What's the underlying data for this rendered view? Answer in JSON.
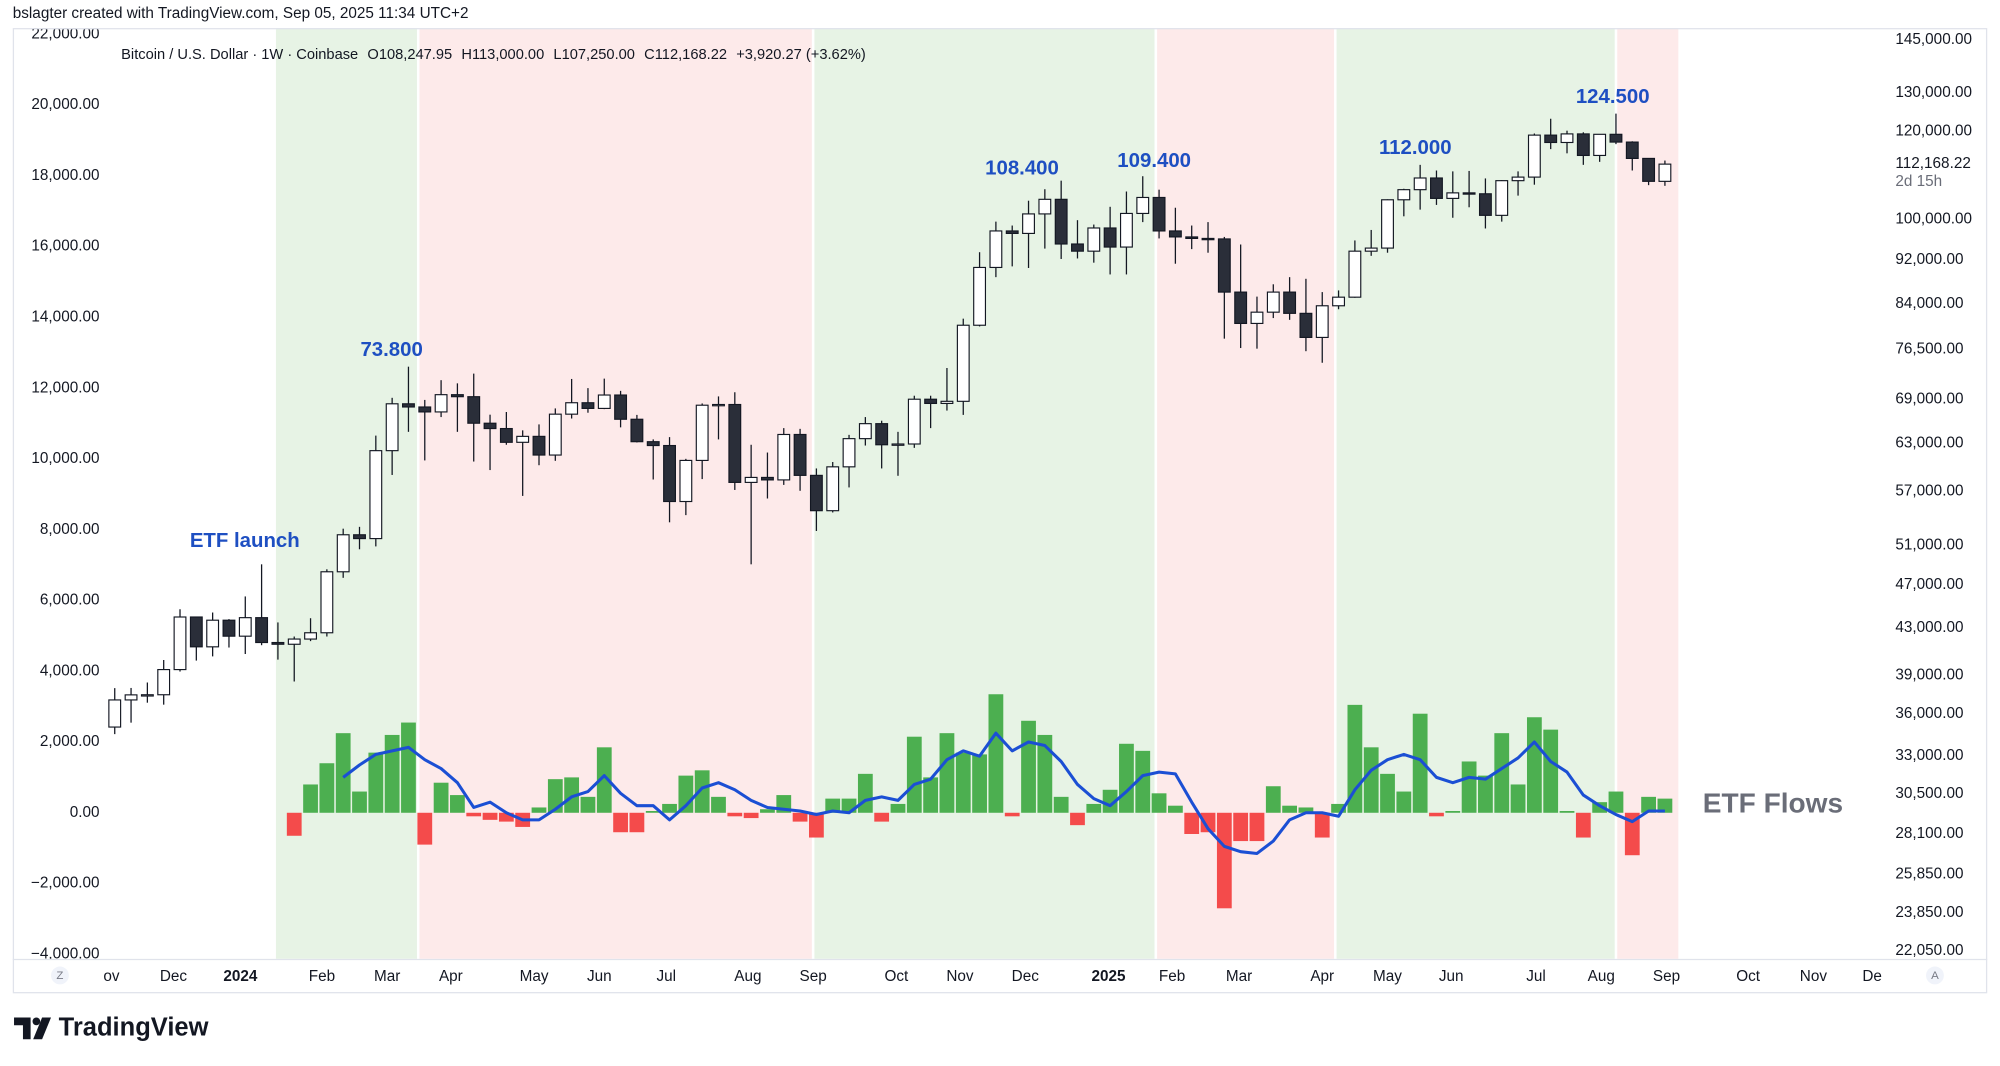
{
  "credit": "bslagter created with TradingView.com, Sep 05, 2025 11:34 UTC+2",
  "brand": "TradingView",
  "controls": {
    "left": "Z",
    "right": "A"
  },
  "chart_data": {
    "type": "candlestick",
    "header": {
      "symbol": "Bitcoin / U.S. Dollar · 1W · Coinbase",
      "ohlc": [
        {
          "key": "O",
          "value": "108,247.95"
        },
        {
          "key": "H",
          "value": "113,000.00"
        },
        {
          "key": "L",
          "value": "107,250.00"
        },
        {
          "key": "C",
          "value": "112,168.22"
        }
      ],
      "change": "+3,920.27 (+3.62%)"
    },
    "x": [
      0,
      1,
      2,
      3,
      4,
      5,
      6,
      7,
      8,
      9,
      10,
      11,
      12,
      13,
      14,
      15,
      16,
      17,
      18,
      19,
      20,
      21,
      22,
      23,
      24,
      25,
      26,
      27,
      28,
      29,
      30,
      31,
      32,
      33,
      34,
      35,
      36,
      37,
      38,
      39,
      40,
      41,
      42,
      43,
      44,
      45,
      46,
      47,
      48,
      49,
      50,
      51,
      52,
      53,
      54,
      55,
      56,
      57,
      58,
      59,
      60,
      61,
      62,
      63,
      64,
      65,
      66,
      67,
      68,
      69,
      70,
      71,
      72,
      73,
      74,
      75,
      76,
      77,
      78,
      79,
      80,
      81,
      82,
      83,
      84,
      85,
      86,
      87,
      88,
      89,
      90,
      91,
      92,
      93,
      94,
      95
    ],
    "open": [
      35040,
      37060,
      37450,
      37460,
      39460,
      43990,
      41360,
      43700,
      42280,
      43930,
      41730,
      41580,
      42030,
      42580,
      48300,
      52140,
      51730,
      62040,
      68350,
      67900,
      67210,
      69650,
      69360,
      65660,
      64940,
      63120,
      63900,
      61480,
      66900,
      68500,
      67700,
      69600,
      66200,
      63200,
      62700,
      55850,
      60800,
      68150,
      68250,
      58100,
      58700,
      58400,
      64150,
      58950,
      54800,
      60000,
      63600,
      65600,
      62800,
      62900,
      69000,
      68400,
      68700,
      80400,
      90600,
      97700,
      97200,
      101200,
      104300,
      95100,
      93700,
      98300,
      94500,
      101300,
      104700,
      97700,
      96500,
      96200,
      96100,
      86100,
      80700,
      82600,
      86100,
      82400,
      78400,
      83700,
      85200,
      93700,
      94300,
      104200,
      106400,
      109000,
      104500,
      105700,
      105500,
      100900,
      108400,
      109200,
      119100,
      117300,
      119400,
      114200,
      119300,
      117400,
      113500,
      108247.95
    ],
    "high": [
      37980,
      37990,
      38420,
      40250,
      44700,
      44000,
      44400,
      43800,
      45900,
      49050,
      43500,
      42250,
      43880,
      48550,
      52800,
      53000,
      64000,
      69200,
      73800,
      68900,
      71770,
      71300,
      72750,
      66830,
      67200,
      64700,
      65500,
      67700,
      71950,
      70600,
      72000,
      70200,
      66800,
      63500,
      63800,
      61000,
      68400,
      69400,
      70000,
      62800,
      61800,
      65000,
      64900,
      59800,
      60600,
      64100,
      66500,
      66000,
      64500,
      69500,
      69500,
      73600,
      81500,
      93500,
      99600,
      98800,
      104000,
      106500,
      108400,
      99900,
      99000,
      102700,
      106000,
      109400,
      106400,
      102500,
      98800,
      99500,
      96500,
      95000,
      85300,
      87500,
      88800,
      88500,
      86100,
      86400,
      95800,
      97900,
      104300,
      106600,
      112000,
      110700,
      110500,
      110600,
      108900,
      108500,
      110500,
      119500,
      123200,
      120200,
      119800,
      119300,
      124500,
      117600,
      113600,
      113000
    ],
    "low": [
      34530,
      35360,
      36850,
      36700,
      39300,
      40200,
      40550,
      41300,
      40750,
      41500,
      40280,
      38500,
      41850,
      42250,
      47700,
      50600,
      50900,
      59000,
      64500,
      60800,
      66500,
      64500,
      60660,
      59600,
      62800,
      56500,
      60200,
      60750,
      66300,
      67100,
      67600,
      65100,
      63100,
      58450,
      53500,
      54300,
      58500,
      63500,
      57200,
      49050,
      56200,
      57800,
      57100,
      52550,
      54600,
      57500,
      62700,
      59800,
      58900,
      62400,
      65000,
      67400,
      66800,
      80200,
      88800,
      90800,
      90500,
      94200,
      92200,
      92300,
      91500,
      89300,
      89300,
      99500,
      96200,
      91300,
      94100,
      93400,
      78200,
      76700,
      76600,
      81600,
      81300,
      76200,
      74400,
      83100,
      85100,
      92800,
      93400,
      100700,
      102100,
      103100,
      100400,
      102600,
      98200,
      99600,
      105100,
      107500,
      115700,
      114700,
      112000,
      112700,
      116900,
      110700,
      107400,
      107250
    ],
    "close": [
      37060,
      37450,
      37460,
      39460,
      43990,
      41360,
      43700,
      42280,
      43930,
      41730,
      41580,
      42030,
      42580,
      48300,
      52140,
      51730,
      62040,
      68350,
      67900,
      67210,
      69650,
      69360,
      65660,
      64940,
      63120,
      63900,
      61480,
      66900,
      68500,
      67700,
      69600,
      66200,
      63200,
      62700,
      55850,
      60800,
      68150,
      68250,
      58100,
      58700,
      58400,
      64150,
      58950,
      54800,
      60000,
      63600,
      65600,
      62800,
      62900,
      69000,
      68400,
      68700,
      80400,
      90600,
      97700,
      97200,
      101200,
      104300,
      95100,
      93700,
      98300,
      94500,
      101300,
      104700,
      97700,
      96500,
      96200,
      96100,
      86100,
      80700,
      82600,
      86100,
      82400,
      78400,
      83700,
      85200,
      93700,
      94300,
      104200,
      106400,
      109000,
      104500,
      105700,
      105500,
      100900,
      108400,
      109200,
      119100,
      117300,
      119400,
      114200,
      119300,
      117400,
      113500,
      108250,
      112168.22
    ],
    "up_color": "#ffffff",
    "down_color": "#2a2e39",
    "wick_color": "#131722",
    "series": [
      {
        "name": "ETF Flows",
        "type": "bar",
        "axis": "y",
        "color": "#4caf50",
        "negative_color": "#f44b4b",
        "values": [
          null,
          null,
          null,
          null,
          null,
          null,
          null,
          null,
          null,
          null,
          null,
          -650,
          800,
          1400,
          2250,
          600,
          1700,
          2200,
          2550,
          -900,
          850,
          500,
          -100,
          -200,
          -250,
          -400,
          150,
          950,
          1000,
          450,
          1850,
          -550,
          -550,
          50,
          250,
          1050,
          1200,
          450,
          -100,
          -150,
          100,
          500,
          -250,
          -700,
          400,
          400,
          1100,
          -250,
          250,
          2150,
          1000,
          2250,
          1700,
          1650,
          3350,
          -100,
          2600,
          2200,
          450,
          -350,
          250,
          650,
          1950,
          1750,
          550,
          200,
          -600,
          -550,
          -2700,
          -800,
          -800,
          750,
          200,
          150,
          -700,
          250,
          3050,
          1850,
          1100,
          600,
          2800,
          -100,
          50,
          1450,
          1050,
          2250,
          800,
          2700,
          2350,
          50,
          -700,
          300,
          600,
          -1200,
          450,
          400
        ]
      },
      {
        "type": "line",
        "axis": "y",
        "color": "#1b4fd4",
        "values": [
          null,
          null,
          null,
          null,
          null,
          null,
          null,
          null,
          null,
          null,
          null,
          null,
          null,
          null,
          1000,
          1350,
          1650,
          1750,
          1850,
          1500,
          1250,
          850,
          150,
          300,
          0,
          -200,
          -200,
          100,
          450,
          600,
          1050,
          550,
          200,
          200,
          -200,
          200,
          700,
          850,
          650,
          350,
          150,
          100,
          50,
          -50,
          50,
          0,
          350,
          450,
          350,
          800,
          950,
          1500,
          1750,
          1600,
          2250,
          1750,
          2000,
          1900,
          1450,
          800,
          400,
          200,
          600,
          1050,
          1150,
          1100,
          300,
          -450,
          -950,
          -1100,
          -1150,
          -800,
          -200,
          0,
          0,
          -100,
          650,
          1200,
          1500,
          1650,
          1500,
          1000,
          850,
          1000,
          950,
          1250,
          1550,
          2000,
          1450,
          1150,
          500,
          200,
          -50,
          -250,
          50,
          50
        ]
      }
    ],
    "xlim": [
      -6.25,
      108.5
    ],
    "xticks": [
      {
        "value": -0.2,
        "label": "ov"
      },
      {
        "value": 3.6,
        "label": "Dec"
      },
      {
        "value": 7.7,
        "label": "2024",
        "bold": true
      },
      {
        "value": 12.7,
        "label": "Feb"
      },
      {
        "value": 16.7,
        "label": "Mar"
      },
      {
        "value": 20.6,
        "label": "Apr"
      },
      {
        "value": 25.7,
        "label": "May"
      },
      {
        "value": 29.7,
        "label": "Jun"
      },
      {
        "value": 33.8,
        "label": "Jul"
      },
      {
        "value": 38.8,
        "label": "Aug"
      },
      {
        "value": 42.8,
        "label": "Sep"
      },
      {
        "value": 47.9,
        "label": "Oct"
      },
      {
        "value": 51.8,
        "label": "Nov"
      },
      {
        "value": 55.8,
        "label": "Dec"
      },
      {
        "value": 60.9,
        "label": "2025",
        "bold": true
      },
      {
        "value": 64.8,
        "label": "Feb"
      },
      {
        "value": 68.9,
        "label": "Mar"
      },
      {
        "value": 74.0,
        "label": "Apr"
      },
      {
        "value": 78.0,
        "label": "May"
      },
      {
        "value": 81.9,
        "label": "Jun"
      },
      {
        "value": 87.1,
        "label": "Jul"
      },
      {
        "value": 91.1,
        "label": "Aug"
      },
      {
        "value": 95.1,
        "label": "Sep"
      },
      {
        "value": 100.1,
        "label": "Oct"
      },
      {
        "value": 104.1,
        "label": "Nov"
      },
      {
        "value": 107.7,
        "label": "De"
      }
    ],
    "ylim": [
      -4130,
      22180
    ],
    "yticks": [
      {
        "value": -4000,
        "label": "−4,000.00"
      },
      {
        "value": -2000,
        "label": "−2,000.00"
      },
      {
        "value": 0,
        "label": "0.00"
      },
      {
        "value": 2000,
        "label": "2,000.00"
      },
      {
        "value": 4000,
        "label": "4,000.00"
      },
      {
        "value": 6000,
        "label": "6,000.00"
      },
      {
        "value": 8000,
        "label": "8,000.00"
      },
      {
        "value": 10000,
        "label": "10,000.00"
      },
      {
        "value": 12000,
        "label": "12,000.00"
      },
      {
        "value": 14000,
        "label": "14,000.00"
      },
      {
        "value": 16000,
        "label": "16,000.00"
      },
      {
        "value": 18000,
        "label": "18,000.00"
      },
      {
        "value": 20000,
        "label": "20,000.00"
      },
      {
        "value": 22000,
        "label": "22,000.00"
      }
    ],
    "y2lim": [
      21700,
      148600
    ],
    "y2scale": "log",
    "y2ticks": [
      {
        "value": 145000,
        "label": "145,000.00"
      },
      {
        "value": 130000,
        "label": "130,000.00"
      },
      {
        "value": 120000,
        "label": "120,000.00"
      },
      {
        "value": 100000,
        "label": "100,000.00"
      },
      {
        "value": 92000,
        "label": "92,000.00"
      },
      {
        "value": 84000,
        "label": "84,000.00"
      },
      {
        "value": 76500,
        "label": "76,500.00"
      },
      {
        "value": 69000,
        "label": "69,000.00"
      },
      {
        "value": 63000,
        "label": "63,000.00"
      },
      {
        "value": 57000,
        "label": "57,000.00"
      },
      {
        "value": 51000,
        "label": "51,000.00"
      },
      {
        "value": 47000,
        "label": "47,000.00"
      },
      {
        "value": 43000,
        "label": "43,000.00"
      },
      {
        "value": 39000,
        "label": "39,000.00"
      },
      {
        "value": 36000,
        "label": "36,000.00"
      },
      {
        "value": 33000,
        "label": "33,000.00"
      },
      {
        "value": 30500,
        "label": "30,500.00"
      },
      {
        "value": 28100,
        "label": "28,100.00"
      },
      {
        "value": 25850,
        "label": "25,850.00"
      },
      {
        "value": 23850,
        "label": "23,850.00"
      },
      {
        "value": 22050,
        "label": "22,050.00"
      }
    ],
    "last_price": {
      "value": 112168.22,
      "label": "112,168.22"
    },
    "countdown": "2d 15h",
    "bands": [
      {
        "x": [
          9.8,
          18.6
        ],
        "color": "#e7f3e5"
      },
      {
        "x": [
          18.6,
          42.8
        ],
        "color": "#fdeaea"
      },
      {
        "x": [
          42.8,
          63.8
        ],
        "color": "#e7f3e5"
      },
      {
        "x": [
          63.8,
          74.8
        ],
        "color": "#fdeaea"
      },
      {
        "x": [
          74.8,
          92.0
        ],
        "color": "#e7f3e5"
      },
      {
        "x": [
          92.0,
          95.9
        ],
        "color": "#fdeaea"
      }
    ],
    "annotation_color": "#1e4fc2",
    "annotations": [
      {
        "text": "ETF launch",
        "x": 7.97,
        "y": 51400
      },
      {
        "text": "73.800",
        "x": 16.97,
        "y": 76270
      },
      {
        "text": "108.400",
        "x": 55.6,
        "y": 111000
      },
      {
        "text": "109.400",
        "x": 63.7,
        "y": 112800
      },
      {
        "text": "112.000",
        "x": 79.7,
        "y": 115800
      },
      {
        "text": "124.500",
        "x": 91.8,
        "y": 128700
      }
    ]
  }
}
